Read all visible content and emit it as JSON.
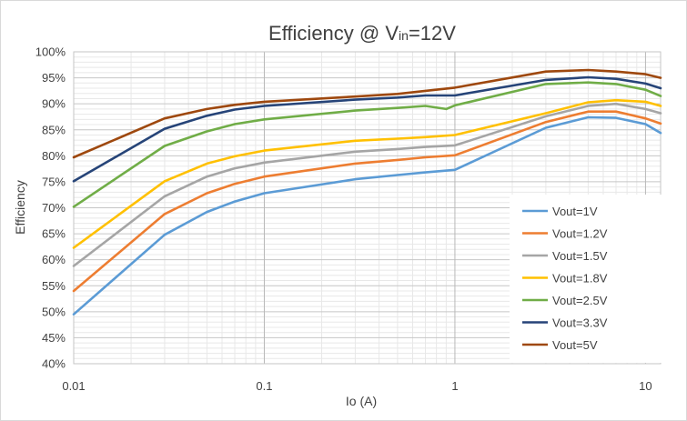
{
  "chart_data": {
    "type": "line",
    "title": {
      "main": "Efficiency @ V",
      "sub": "in",
      "tail": "=12V"
    },
    "xlabel": "Io (A)",
    "ylabel": "Efficiency",
    "xscale": "log",
    "xlim": [
      0.01,
      12
    ],
    "ylim": [
      40,
      100
    ],
    "x_ticks": [
      0.01,
      0.1,
      1,
      10
    ],
    "x_tick_labels": [
      "0.01",
      "0.1",
      "1",
      "10"
    ],
    "y_ticks": [
      40,
      45,
      50,
      55,
      60,
      65,
      70,
      75,
      80,
      85,
      90,
      95,
      100
    ],
    "y_tick_labels": [
      "40%",
      "45%",
      "50%",
      "55%",
      "60%",
      "65%",
      "70%",
      "75%",
      "80%",
      "85%",
      "90%",
      "95%",
      "100%"
    ],
    "grid": true,
    "legend_position": "bottom-right",
    "series": [
      {
        "name": "Vout=1V",
        "color": "#5B9BD5",
        "x": [
          0.01,
          0.03,
          0.05,
          0.07,
          0.1,
          0.3,
          0.5,
          0.7,
          1,
          3,
          5,
          7,
          10,
          12
        ],
        "y": [
          49.5,
          64.8,
          69.2,
          71.2,
          72.8,
          75.5,
          76.3,
          76.8,
          77.3,
          85.4,
          87.4,
          87.3,
          86.1,
          84.4
        ]
      },
      {
        "name": "Vout=1.2V",
        "color": "#ED7D31",
        "x": [
          0.01,
          0.03,
          0.05,
          0.07,
          0.1,
          0.3,
          0.5,
          0.7,
          1,
          3,
          5,
          7,
          10,
          12
        ],
        "y": [
          54.0,
          68.8,
          72.8,
          74.6,
          76.0,
          78.5,
          79.2,
          79.7,
          80.1,
          86.5,
          88.5,
          88.5,
          87.2,
          86.2
        ]
      },
      {
        "name": "Vout=1.5V",
        "color": "#A5A5A5",
        "x": [
          0.01,
          0.03,
          0.05,
          0.07,
          0.1,
          0.3,
          0.5,
          0.7,
          1,
          3,
          5,
          7,
          10,
          12
        ],
        "y": [
          58.8,
          72.2,
          76.0,
          77.6,
          78.7,
          80.8,
          81.3,
          81.7,
          82.0,
          87.6,
          89.6,
          90.0,
          89.0,
          88.2
        ]
      },
      {
        "name": "Vout=1.8V",
        "color": "#FFC000",
        "x": [
          0.01,
          0.03,
          0.05,
          0.07,
          0.1,
          0.3,
          0.5,
          0.7,
          1,
          3,
          5,
          7,
          10,
          12
        ],
        "y": [
          62.3,
          75.1,
          78.5,
          79.9,
          81.0,
          82.9,
          83.3,
          83.6,
          84.0,
          88.2,
          90.3,
          90.7,
          90.4,
          89.6
        ]
      },
      {
        "name": "Vout=2.5V",
        "color": "#70AD47",
        "x": [
          0.01,
          0.03,
          0.05,
          0.07,
          0.1,
          0.3,
          0.5,
          0.7,
          0.9,
          1,
          3,
          5,
          7,
          10,
          12
        ],
        "y": [
          70.2,
          81.9,
          84.7,
          86.1,
          87.0,
          88.7,
          89.2,
          89.6,
          89.0,
          89.7,
          93.8,
          94.1,
          93.8,
          92.7,
          91.5
        ]
      },
      {
        "name": "Vout=3.3V",
        "color": "#264478",
        "x": [
          0.01,
          0.03,
          0.05,
          0.07,
          0.1,
          0.3,
          0.5,
          0.7,
          1,
          3,
          5,
          7,
          10,
          12
        ],
        "y": [
          75.1,
          85.2,
          87.7,
          88.9,
          89.6,
          90.8,
          91.2,
          91.6,
          91.6,
          94.6,
          95.1,
          94.8,
          93.9,
          93.0
        ]
      },
      {
        "name": "Vout=5V",
        "color": "#9E480E",
        "x": [
          0.01,
          0.03,
          0.05,
          0.07,
          0.1,
          0.3,
          0.5,
          0.7,
          1,
          3,
          5,
          7,
          10,
          12
        ],
        "y": [
          79.7,
          87.2,
          89.0,
          89.8,
          90.4,
          91.4,
          91.9,
          92.5,
          93.1,
          96.2,
          96.5,
          96.2,
          95.7,
          95.0
        ]
      }
    ]
  }
}
